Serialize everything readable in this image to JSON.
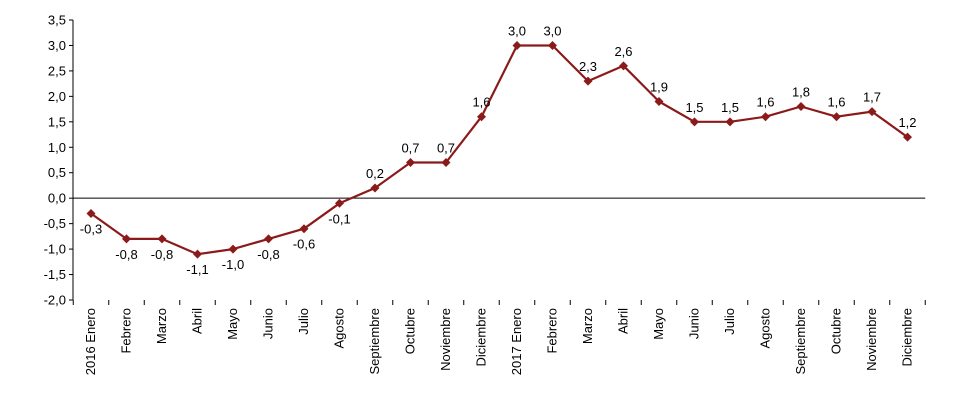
{
  "chart_data": {
    "type": "line",
    "title": "",
    "xlabel": "",
    "ylabel": "",
    "ylim": [
      -2.0,
      3.5
    ],
    "yticks": [
      "3,5",
      "3,0",
      "2,5",
      "2,0",
      "1,5",
      "1,0",
      "0,5",
      "0,0",
      "-0,5",
      "-1,0",
      "-1,5",
      "-2,0"
    ],
    "grid": false,
    "legend": "none",
    "colors": {
      "line": "#8b1a1a",
      "marker": "#8b1a1a",
      "axis": "#000000"
    },
    "categories": [
      "2016 Enero",
      "Febrero",
      "Marzo",
      "Abril",
      "Mayo",
      "Junio",
      "Julio",
      "Agosto",
      "Septiembre",
      "Octubre",
      "Noviembre",
      "Diciembre",
      "2017 Enero",
      "Febrero",
      "Marzo",
      "Abril",
      "Mayo",
      "Junio",
      "Julio",
      "Agosto",
      "Septiembre",
      "Octubre",
      "Noviembre",
      "Diciembre"
    ],
    "series": [
      {
        "values": [
          -0.3,
          -0.8,
          -0.8,
          -1.1,
          -1.0,
          -0.8,
          -0.6,
          -0.1,
          0.2,
          0.7,
          0.7,
          1.6,
          3.0,
          3.0,
          2.3,
          2.6,
          1.9,
          1.5,
          1.5,
          1.6,
          1.8,
          1.6,
          1.7,
          1.2
        ],
        "labels": [
          "-0,3",
          "-0,8",
          "-0,8",
          "-1,1",
          "-1,0",
          "-0,8",
          "-0,6",
          "-0,1",
          "0,2",
          "0,7",
          "0,7",
          "1,6",
          "3,0",
          "3,0",
          "2,3",
          "2,6",
          "1,9",
          "1,5",
          "1,5",
          "1,6",
          "1,8",
          "1,6",
          "1,7",
          "1,2"
        ]
      }
    ]
  }
}
